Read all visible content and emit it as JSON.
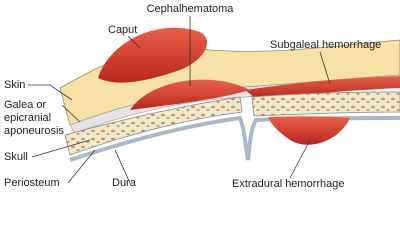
{
  "labels": {
    "caput": "Caput",
    "cephalhematoma": "Cephalhematoma",
    "subgaleal": "Subgaleal hemorrhage",
    "skin": "Skin",
    "galea": [
      "Galea or",
      "epicranial",
      "aponeurosis"
    ],
    "skull": "Skull",
    "periosteum": "Periosteum",
    "dura": "Dura",
    "extradural": "Extradural hemorrhage"
  }
}
